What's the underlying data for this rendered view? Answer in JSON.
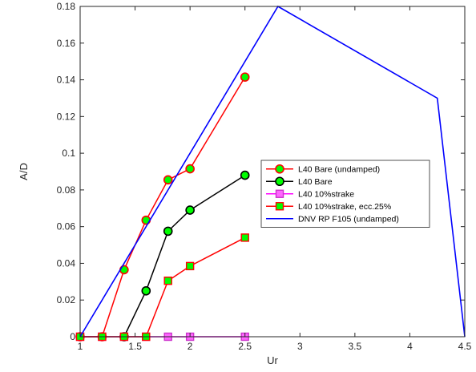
{
  "chart_data": {
    "type": "line",
    "xlabel": "Ur",
    "ylabel": "A/D",
    "xlim": [
      1,
      4.5
    ],
    "ylim": [
      0,
      0.18
    ],
    "x_ticks": [
      1,
      1.5,
      2,
      2.5,
      3,
      3.5,
      4,
      4.5
    ],
    "y_ticks": [
      0,
      0.02,
      0.04,
      0.06,
      0.08,
      0.1,
      0.12,
      0.14,
      0.16,
      0.18
    ],
    "x_tick_labels": [
      "1",
      "1.5",
      "2",
      "2.5",
      "3",
      "3.5",
      "4",
      "4.5"
    ],
    "y_tick_labels": [
      "0",
      "0.02",
      "0.04",
      "0.06",
      "0.08",
      "0.1",
      "0.12",
      "0.14",
      "0.16",
      "0.18"
    ],
    "grid": false,
    "legend_position": "center-right",
    "series": [
      {
        "name": "L40 Bare (undamped)",
        "line_color": "#ff0000",
        "marker": "circle",
        "marker_face": "#00ff00",
        "marker_edge": "#ff0000",
        "x": [
          1,
          1.2,
          1.4,
          1.6,
          1.8,
          2,
          2.5
        ],
        "y": [
          0,
          0,
          0.0365,
          0.0635,
          0.0855,
          0.0915,
          0.1415
        ]
      },
      {
        "name": "L40 Bare",
        "line_color": "#000000",
        "marker": "circle",
        "marker_face": "#00ff00",
        "marker_edge": "#000000",
        "x": [
          1.4,
          1.6,
          1.8,
          2,
          2.5
        ],
        "y": [
          0,
          0.025,
          0.0575,
          0.069,
          0.088
        ]
      },
      {
        "name": "L40 10%strake",
        "line_color": "#ff00ff",
        "marker": "square",
        "marker_face": "#ff66ff",
        "marker_edge": "#cc33cc",
        "x": [
          1,
          1.2,
          1.4,
          1.6,
          1.8,
          2,
          2.5
        ],
        "y": [
          0,
          0,
          0,
          0,
          0,
          0,
          0
        ]
      },
      {
        "name": "L40 10%strake, ecc.25%",
        "line_color": "#ff0000",
        "marker": "square",
        "marker_face": "#00ff00",
        "marker_edge": "#ff0000",
        "x": [
          1,
          1.2,
          1.4,
          1.6,
          1.8,
          2,
          2.5
        ],
        "y": [
          0,
          0,
          0,
          0,
          0.0305,
          0.0385,
          0.054
        ]
      },
      {
        "name": "DNV RP F105 (undamped)",
        "line_color": "#0000ff",
        "marker": "none",
        "x": [
          1,
          2.8,
          4.25,
          4.5
        ],
        "y": [
          0,
          0.18,
          0.13,
          0
        ]
      }
    ]
  }
}
